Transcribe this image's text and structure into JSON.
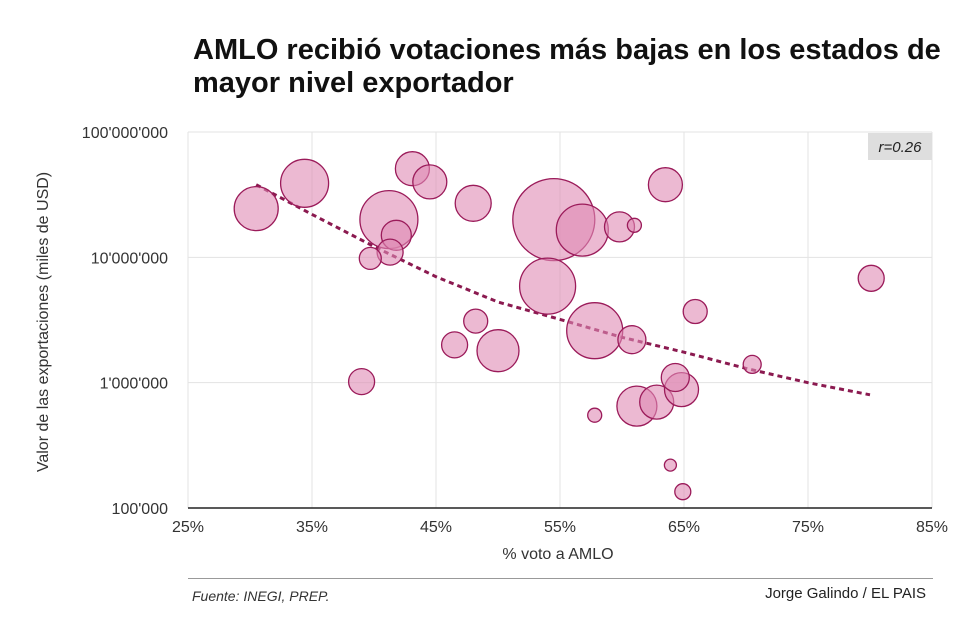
{
  "title": "AMLO recibió votaciones más bajas en los estados de mayor nivel exportador",
  "footer": {
    "source": "Fuente: INEGI, PREP.",
    "credit": "Jorge Galindo / EL PAIS"
  },
  "chart_data": {
    "type": "scatter",
    "subtype": "bubble",
    "title": "AMLO recibió votaciones más bajas en los estados de mayor nivel exportador",
    "xlabel": "% voto a AMLO",
    "ylabel": "Valor de las exportaciones (miles de USD)",
    "xlim": [
      25,
      85
    ],
    "ylim": [
      100000,
      100000000
    ],
    "yscale": "log",
    "grid": true,
    "xticks": [
      25,
      35,
      45,
      55,
      65,
      75,
      85
    ],
    "xtick_labels": [
      "25%",
      "35%",
      "45%",
      "55%",
      "65%",
      "75%",
      "85%"
    ],
    "yticks": [
      100000,
      1000000,
      10000000,
      100000000
    ],
    "ytick_labels": [
      "100'000",
      "1'000'000",
      "10'000'000",
      "100'000'000"
    ],
    "annotation": "r=0.26",
    "colors": {
      "fill": "#e08ab4",
      "stroke": "#9b1b5a",
      "trend": "#8b1a50"
    },
    "points": [
      {
        "x": 30.5,
        "y": 24500000,
        "size": 22
      },
      {
        "x": 34.4,
        "y": 39000000,
        "size": 24
      },
      {
        "x": 39.0,
        "y": 1020000,
        "size": 13
      },
      {
        "x": 39.7,
        "y": 9800000,
        "size": 11
      },
      {
        "x": 41.2,
        "y": 20000000,
        "size": 29
      },
      {
        "x": 41.3,
        "y": 11000000,
        "size": 13
      },
      {
        "x": 41.8,
        "y": 15000000,
        "size": 15
      },
      {
        "x": 43.1,
        "y": 51000000,
        "size": 17
      },
      {
        "x": 44.5,
        "y": 40000000,
        "size": 17
      },
      {
        "x": 46.5,
        "y": 2000000,
        "size": 13
      },
      {
        "x": 48.0,
        "y": 27000000,
        "size": 18
      },
      {
        "x": 48.2,
        "y": 3100000,
        "size": 12
      },
      {
        "x": 50.0,
        "y": 1800000,
        "size": 21
      },
      {
        "x": 54.0,
        "y": 5900000,
        "size": 28
      },
      {
        "x": 54.5,
        "y": 20000000,
        "size": 41
      },
      {
        "x": 56.8,
        "y": 16500000,
        "size": 26
      },
      {
        "x": 57.8,
        "y": 550000,
        "size": 7
      },
      {
        "x": 57.8,
        "y": 2600000,
        "size": 28
      },
      {
        "x": 59.8,
        "y": 17500000,
        "size": 15
      },
      {
        "x": 61.0,
        "y": 18000000,
        "size": 7
      },
      {
        "x": 60.8,
        "y": 2200000,
        "size": 14
      },
      {
        "x": 61.2,
        "y": 650000,
        "size": 20
      },
      {
        "x": 62.8,
        "y": 700000,
        "size": 17
      },
      {
        "x": 63.5,
        "y": 38000000,
        "size": 17
      },
      {
        "x": 63.9,
        "y": 220000,
        "size": 6
      },
      {
        "x": 64.3,
        "y": 1100000,
        "size": 14
      },
      {
        "x": 64.8,
        "y": 880000,
        "size": 17
      },
      {
        "x": 64.9,
        "y": 135000,
        "size": 8
      },
      {
        "x": 65.9,
        "y": 3700000,
        "size": 12
      },
      {
        "x": 70.5,
        "y": 1400000,
        "size": 9
      },
      {
        "x": 80.1,
        "y": 6800000,
        "size": 13
      }
    ],
    "trendline": {
      "x": [
        30.5,
        35,
        40,
        45,
        50,
        55,
        60,
        65,
        70,
        75,
        80
      ],
      "y": [
        38000000,
        22000000,
        12200000,
        7000000,
        4400000,
        3200000,
        2300000,
        1750000,
        1300000,
        1000000,
        800000
      ]
    }
  }
}
